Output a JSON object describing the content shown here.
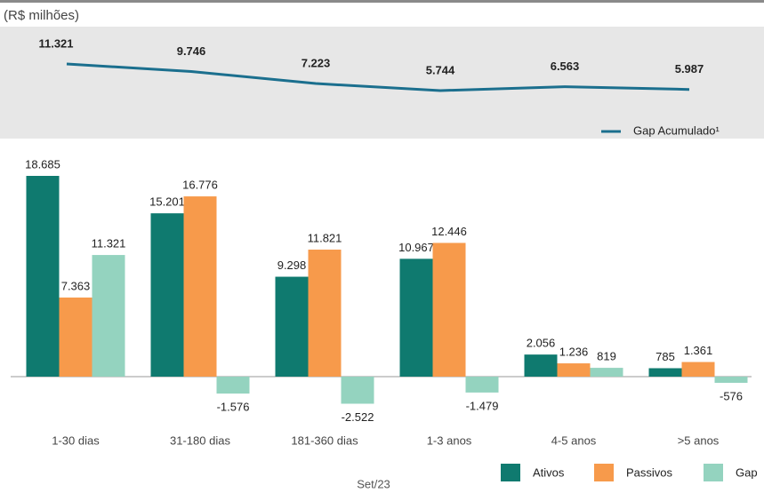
{
  "chart_data": [
    {
      "type": "line",
      "title": "(R$ milhões)",
      "series": [
        {
          "name": "Gap Acumulado¹",
          "color": "#1b6f8e",
          "values": [
            11321,
            9746,
            7223,
            5744,
            6563,
            5987
          ],
          "value_labels": [
            "11.321",
            "9.746",
            "7.223",
            "5.744",
            "6.563",
            "5.987"
          ]
        }
      ]
    },
    {
      "type": "bar",
      "xlabel": "Set/23",
      "categories": [
        "1-30 dias",
        "31-180 dias",
        "181-360 dias",
        "1-3 anos",
        "4-5 anos",
        ">5 anos"
      ],
      "series": [
        {
          "name": "Ativos",
          "color": "#0f7a6f",
          "values": [
            18685,
            15201,
            9298,
            10967,
            2056,
            785
          ],
          "value_labels": [
            "18.685",
            "15.201",
            "9.298",
            "10.967",
            "2.056",
            "785"
          ]
        },
        {
          "name": "Passivos",
          "color": "#f79a4b",
          "values": [
            7363,
            16776,
            11821,
            12446,
            1236,
            1361
          ],
          "value_labels": [
            "7.363",
            "16.776",
            "11.821",
            "12.446",
            "1.236",
            "1.361"
          ]
        },
        {
          "name": "Gap",
          "color": "#94d3bf",
          "values": [
            11321,
            -1576,
            -2522,
            -1479,
            819,
            -576
          ],
          "value_labels": [
            "11.321",
            "-1.576",
            "-2.522",
            "-1.479",
            "819",
            "-576"
          ]
        }
      ]
    }
  ]
}
